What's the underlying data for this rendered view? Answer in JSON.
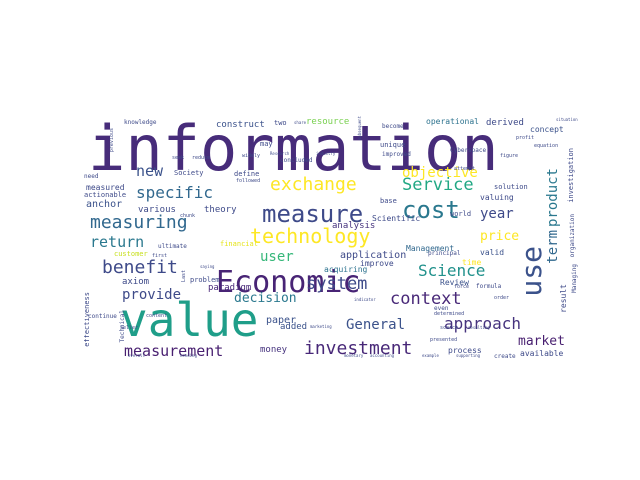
{
  "words": [
    {
      "text": "information",
      "color": "#472c7a",
      "s": 62
    },
    {
      "text": "value",
      "color": "#1f9e89",
      "s": 46
    },
    {
      "text": "Economic",
      "color": "#482475",
      "s": 30
    },
    {
      "text": "measure",
      "color": "#3e4a89",
      "s": 24
    },
    {
      "text": "cost",
      "color": "#2a788e",
      "s": 24
    },
    {
      "text": "technology",
      "color": "#fde725",
      "s": 20
    },
    {
      "text": "exchange",
      "color": "#fde725",
      "s": 18
    },
    {
      "text": "measuring",
      "color": "#31688e",
      "s": 18
    },
    {
      "text": "benefit",
      "color": "#3e4a89",
      "s": 18
    },
    {
      "text": "investment",
      "color": "#482878",
      "s": 18
    },
    {
      "text": "use",
      "color": "#3b528b",
      "s": 28
    },
    {
      "text": "Service",
      "color": "#22a884",
      "s": 17
    },
    {
      "text": "system",
      "color": "#3e4a89",
      "s": 17
    },
    {
      "text": "context",
      "color": "#482878",
      "s": 17
    },
    {
      "text": "approach",
      "color": "#46337e",
      "s": 16
    },
    {
      "text": "specific",
      "color": "#31688e",
      "s": 16
    },
    {
      "text": "Science",
      "color": "#21918c",
      "s": 16
    },
    {
      "text": "measurement",
      "color": "#481f70",
      "s": 15
    },
    {
      "text": "return",
      "color": "#2a788e",
      "s": 15
    },
    {
      "text": "new",
      "color": "#3b528b",
      "s": 15
    },
    {
      "text": "provide",
      "color": "#3e4a89",
      "s": 14
    },
    {
      "text": "user",
      "color": "#35b779",
      "s": 14
    },
    {
      "text": "General",
      "color": "#3b528b",
      "s": 14
    },
    {
      "text": "objective",
      "color": "#fde725",
      "s": 14
    },
    {
      "text": "year",
      "color": "#3e4a89",
      "s": 14
    },
    {
      "text": "price",
      "color": "#fde725",
      "s": 13
    },
    {
      "text": "decision",
      "color": "#2a788e",
      "s": 13
    },
    {
      "text": "market",
      "color": "#481f70",
      "s": 13
    },
    {
      "text": "product",
      "color": "#2a788e",
      "s": 14
    },
    {
      "text": "term",
      "color": "#31688e",
      "s": 14
    },
    {
      "text": "application",
      "color": "#3e4a89",
      "s": 10
    },
    {
      "text": "analysis",
      "color": "#46337e",
      "s": 9
    },
    {
      "text": "paper",
      "color": "#3b528b",
      "s": 10
    },
    {
      "text": "resource",
      "color": "#7ad151",
      "s": 9
    },
    {
      "text": "construct",
      "color": "#3b528b",
      "s": 9
    },
    {
      "text": "operational",
      "color": "#2c728e",
      "s": 8
    },
    {
      "text": "derived",
      "color": "#3e4a89",
      "s": 9
    },
    {
      "text": "concept",
      "color": "#3b528b",
      "s": 8
    },
    {
      "text": "anchor",
      "color": "#3b528b",
      "s": 10
    },
    {
      "text": "various",
      "color": "#3e4a89",
      "s": 9
    },
    {
      "text": "theory",
      "color": "#3e4a89",
      "s": 9
    },
    {
      "text": "paradigm",
      "color": "#482878",
      "s": 9
    },
    {
      "text": "axiom",
      "color": "#3e4a89",
      "s": 9
    },
    {
      "text": "money",
      "color": "#46337e",
      "s": 9
    },
    {
      "text": "added",
      "color": "#3b528b",
      "s": 9
    },
    {
      "text": "Management",
      "color": "#31688e",
      "s": 8
    },
    {
      "text": "Review",
      "color": "#3b528b",
      "s": 8
    },
    {
      "text": "valid",
      "color": "#3b528b",
      "s": 8
    },
    {
      "text": "improve",
      "color": "#3e4a89",
      "s": 8
    },
    {
      "text": "acquiring",
      "color": "#2c728e",
      "s": 8
    },
    {
      "text": "Scientific",
      "color": "#3e4a89",
      "s": 8
    },
    {
      "text": "world",
      "color": "#3e4a89",
      "s": 7
    },
    {
      "text": "valuing",
      "color": "#3e4a89",
      "s": 8
    },
    {
      "text": "investigation",
      "color": "#3e4a89",
      "s": 7
    },
    {
      "text": "solution",
      "color": "#3e4a89",
      "s": 7
    },
    {
      "text": "process",
      "color": "#3e4a89",
      "s": 8
    },
    {
      "text": "available",
      "color": "#3e4a89",
      "s": 8
    },
    {
      "text": "create",
      "color": "#3e4a89",
      "s": 6
    },
    {
      "text": "result",
      "color": "#3e4a89",
      "s": 8
    },
    {
      "text": "effectiveness",
      "color": "#3e4a89",
      "s": 7
    },
    {
      "text": "measured",
      "color": "#3e4a89",
      "s": 8
    },
    {
      "text": "actionable",
      "color": "#3e4a89",
      "s": 7
    },
    {
      "text": "Society",
      "color": "#3e4a89",
      "s": 7
    },
    {
      "text": "knowledge",
      "color": "#3e4a89",
      "s": 6
    },
    {
      "text": "define",
      "color": "#3e4a89",
      "s": 7
    },
    {
      "text": "financial",
      "color": "#e5e419",
      "s": 7
    },
    {
      "text": "customer",
      "color": "#c8e020",
      "s": 7
    },
    {
      "text": "problem",
      "color": "#3e4a89",
      "s": 7
    },
    {
      "text": "time",
      "color": "#fde725",
      "s": 8
    },
    {
      "text": "unique",
      "color": "#3e4a89",
      "s": 7
    },
    {
      "text": "improved",
      "color": "#3e4a89",
      "s": 6
    },
    {
      "text": "concluded",
      "color": "#3e4a89",
      "s": 6
    },
    {
      "text": "widely",
      "color": "#3e4a89",
      "s": 5
    },
    {
      "text": "two",
      "color": "#3e4a89",
      "s": 7
    },
    {
      "text": "become",
      "color": "#3e4a89",
      "s": 6
    },
    {
      "text": "Cyberspace",
      "color": "#3e4a89",
      "s": 6
    },
    {
      "text": "may",
      "color": "#3e4a89",
      "s": 7
    },
    {
      "text": "continue",
      "color": "#3e4a89",
      "s": 6
    },
    {
      "text": "base",
      "color": "#3e4a89",
      "s": 7
    },
    {
      "text": "need",
      "color": "#3e4a89",
      "s": 6
    },
    {
      "text": "ultimate",
      "color": "#3e4a89",
      "s": 6
    },
    {
      "text": "principal",
      "color": "#3e4a89",
      "s": 6
    },
    {
      "text": "formula",
      "color": "#3e4a89",
      "s": 6
    },
    {
      "text": "force",
      "color": "#3e4a89",
      "s": 5
    },
    {
      "text": "order",
      "color": "#3e4a89",
      "s": 5
    },
    {
      "text": "even",
      "color": "#3e4a89",
      "s": 6
    },
    {
      "text": "determined",
      "color": "#3e4a89",
      "s": 5
    },
    {
      "text": "equation",
      "color": "#3e4a89",
      "s": 5
    },
    {
      "text": "profit",
      "color": "#3e4a89",
      "s": 5
    },
    {
      "text": "attempt",
      "color": "#3e4a89",
      "s": 5
    },
    {
      "text": "followed",
      "color": "#3e4a89",
      "s": 5
    },
    {
      "text": "first",
      "color": "#3e4a89",
      "s": 5
    },
    {
      "text": "content",
      "color": "#3e4a89",
      "s": 5
    },
    {
      "text": "seller",
      "color": "#3e4a89",
      "s": 5
    },
    {
      "text": "Technical",
      "color": "#3e4a89",
      "s": 6
    },
    {
      "text": "organization",
      "color": "#3e4a89",
      "s": 6
    },
    {
      "text": "Managing",
      "color": "#3e4a89",
      "s": 6
    },
    {
      "text": "chunk",
      "color": "#3e4a89",
      "s": 5
    },
    {
      "text": "presented",
      "color": "#3e4a89",
      "s": 5
    },
    {
      "text": "scarce",
      "color": "#3e4a89",
      "s": 5
    },
    {
      "text": "Last",
      "color": "#3e4a89",
      "s": 5
    },
    {
      "text": "figure",
      "color": "#3e4a89",
      "s": 5
    },
    {
      "text": "reduce",
      "color": "#3e4a89",
      "s": 5
    },
    {
      "text": "seek",
      "color": "#3e4a89",
      "s": 5
    },
    {
      "text": "previous",
      "color": "#3e4a89",
      "s": 5
    },
    {
      "text": "situation",
      "color": "#3e4a89",
      "s": 4
    },
    {
      "text": "share",
      "color": "#3e4a89",
      "s": 4
    },
    {
      "text": "subsequent",
      "color": "#3e4a89",
      "s": 4
    },
    {
      "text": "example",
      "color": "#3e4a89",
      "s": 4
    },
    {
      "text": "supporting",
      "color": "#3e4a89",
      "s": 4
    },
    {
      "text": "needing",
      "color": "#3e4a89",
      "s": 4
    },
    {
      "text": "resulting",
      "color": "#3e4a89",
      "s": 4
    },
    {
      "text": "accounting",
      "color": "#3e4a89",
      "s": 4
    },
    {
      "text": "overall",
      "color": "#3e4a89",
      "s": 4
    },
    {
      "text": "Research",
      "color": "#3e4a89",
      "s": 4
    },
    {
      "text": "industry",
      "color": "#3e4a89",
      "s": 4
    },
    {
      "text": "saying",
      "color": "#3e4a89",
      "s": 4
    },
    {
      "text": "indicator",
      "color": "#3e4a89",
      "s": 4
    },
    {
      "text": "monetary",
      "color": "#3e4a89",
      "s": 4
    },
    {
      "text": "marketing",
      "color": "#3e4a89",
      "s": 4
    }
  ]
}
